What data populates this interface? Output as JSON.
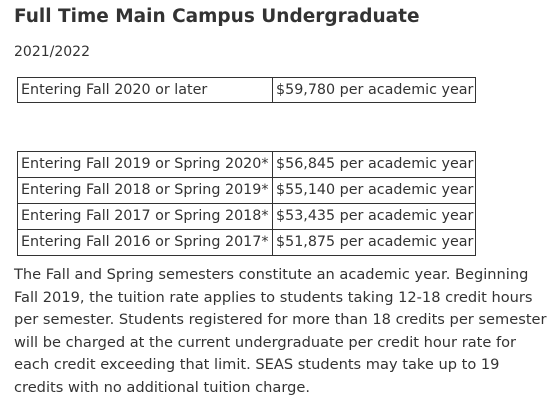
{
  "heading": "Full Time Main Campus Undergraduate",
  "year": "2021/2022",
  "current_rate_table": [
    {
      "entry": "Entering Fall 2020 or later",
      "rate": "$59,780 per academic year"
    }
  ],
  "prior_rate_table": [
    {
      "entry": "Entering Fall 2019 or Spring 2020*",
      "rate": "$56,845 per academic year"
    },
    {
      "entry": "Entering Fall 2018 or Spring 2019*",
      "rate": "$55,140 per academic year"
    },
    {
      "entry": "Entering Fall 2017 or Spring 2018*",
      "rate": "$53,435 per academic year"
    },
    {
      "entry": "Entering Fall 2016 or Spring 2017*",
      "rate": "$51,875 per academic year"
    }
  ],
  "note": "The Fall and Spring semesters constitute an academic year. Beginning Fall 2019, the tuition rate applies to students taking 12-18 credit hours per semester. Students registered for more than 18 credits per semester will be charged at the current undergraduate per credit hour rate for each credit exceeding that limit. SEAS students may take up to 19 credits with no additional tuition charge."
}
